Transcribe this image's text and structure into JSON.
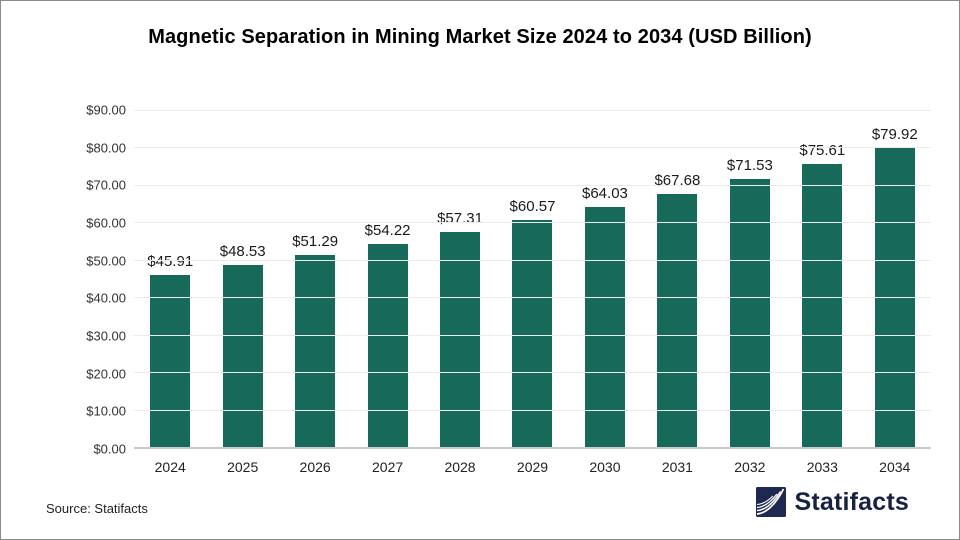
{
  "page": {
    "title": "Magnetic Separation in Mining Market Size 2024 to 2034 (USD Billion)",
    "source_text": "Source: Statifacts",
    "brand": {
      "name": "Statifacts",
      "logo_icon": "waves-logo-icon"
    }
  },
  "colors": {
    "bar": "#17695a",
    "gridline": "#ebebeb",
    "axis_line": "#c8c8c8",
    "brand_navy": "#1d2951",
    "brand_text": "#172142"
  },
  "chart_data": {
    "type": "bar",
    "title": "Magnetic Separation in Mining Market Size 2024 to 2034 (USD Billion)",
    "categories": [
      "2024",
      "2025",
      "2026",
      "2027",
      "2028",
      "2029",
      "2030",
      "2031",
      "2032",
      "2033",
      "2034"
    ],
    "values": [
      45.91,
      48.53,
      51.29,
      54.22,
      57.31,
      60.57,
      64.03,
      67.68,
      71.53,
      75.61,
      79.92
    ],
    "value_labels": [
      "$45.91",
      "$48.53",
      "$51.29",
      "$54.22",
      "$57.31",
      "$60.57",
      "$64.03",
      "$67.68",
      "$71.53",
      "$75.61",
      "$79.92"
    ],
    "xlabel": "",
    "ylabel": "",
    "ylim": [
      0,
      90
    ],
    "y_ticks": [
      {
        "value": 90,
        "label": "$90.00"
      },
      {
        "value": 80,
        "label": "$80.00"
      },
      {
        "value": 70,
        "label": "$70.00"
      },
      {
        "value": 60,
        "label": "$60.00"
      },
      {
        "value": 50,
        "label": "$50.00"
      },
      {
        "value": 40,
        "label": "$40.00"
      },
      {
        "value": 30,
        "label": "$30.00"
      },
      {
        "value": 20,
        "label": "$20.00"
      },
      {
        "value": 10,
        "label": "$10.00"
      },
      {
        "value": 0,
        "label": "$0.00"
      }
    ],
    "grid": true,
    "legend": "none",
    "bar_color": "#17695a"
  }
}
